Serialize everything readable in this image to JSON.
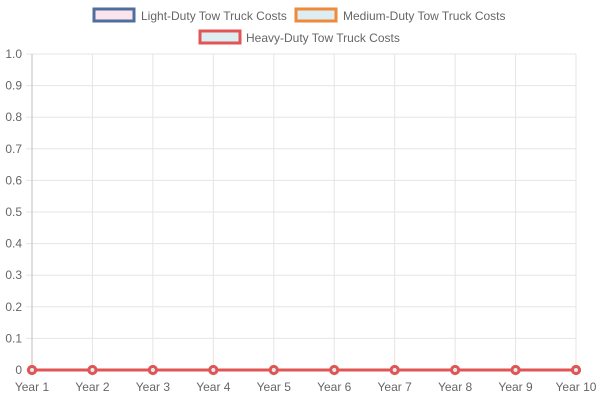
{
  "chart_data": {
    "type": "line",
    "title": "",
    "xlabel": "",
    "ylabel": "",
    "categories": [
      "Year 1",
      "Year 2",
      "Year 3",
      "Year 4",
      "Year 5",
      "Year 6",
      "Year 7",
      "Year 8",
      "Year 9",
      "Year 10"
    ],
    "ylim": [
      0,
      1
    ],
    "yticks": [
      "0",
      "0.1",
      "0.2",
      "0.3",
      "0.4",
      "0.5",
      "0.6",
      "0.7",
      "0.8",
      "0.9",
      "1.0"
    ],
    "grid": true,
    "legend_position": "top",
    "series": [
      {
        "name": "Light-Duty Tow Truck Costs",
        "values": [
          0,
          0,
          0,
          0,
          0,
          0,
          0,
          0,
          0,
          0
        ],
        "border_color": "#4e6e9e",
        "fill_color": "#fce4ec"
      },
      {
        "name": "Medium-Duty Tow Truck Costs",
        "values": [
          0,
          0,
          0,
          0,
          0,
          0,
          0,
          0,
          0,
          0
        ],
        "border_color": "#ee8a3a",
        "fill_color": "#ddeef3"
      },
      {
        "name": "Heavy-Duty Tow Truck Costs",
        "values": [
          0,
          0,
          0,
          0,
          0,
          0,
          0,
          0,
          0,
          0
        ],
        "border_color": "#e25555",
        "fill_color": "#ddeef3"
      }
    ]
  }
}
